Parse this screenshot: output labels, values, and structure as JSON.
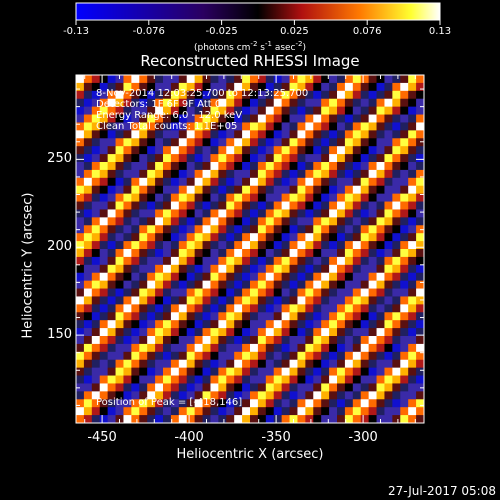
{
  "colorbar": {
    "ticks": [
      "-0.13",
      "-0.076",
      "-0.025",
      "0.025",
      "0.076",
      "0.13"
    ],
    "units_main": "(photons cm",
    "units_sup1": "-2",
    "units_mid": " s",
    "units_sup2": "-1",
    "units_end": " asec",
    "units_sup3": "-2",
    "units_close": ")"
  },
  "chart_data": {
    "type": "heatmap",
    "title": "Reconstructed RHESSI Image",
    "xlabel": "Heliocentric X (arcsec)",
    "ylabel": "Heliocentric Y (arcsec)",
    "xlim": [
      -465,
      -265
    ],
    "ylim": [
      100,
      298
    ],
    "x_ticks": [
      -450,
      -400,
      -350,
      -300
    ],
    "y_ticks": [
      150,
      200,
      250
    ],
    "value_range": [
      -0.13,
      0.13
    ],
    "pattern": "diagonal stripes (upper-left to lower-right), alternating positive and negative flux",
    "grid": false
  },
  "info": {
    "line1": "8-Nov-2014 12:03:25.700 to 12:13:25.700",
    "line2": "Detectors: 1F 6F 9F  Att 0",
    "line3": "Energy Range: 6.0 - 12.0 keV",
    "line4": "Clean    Total counts: 1.1E+05",
    "peak": "Position of Peak = [-418,146]"
  },
  "footer": {
    "date": "27-Jul-2017 05:08"
  }
}
